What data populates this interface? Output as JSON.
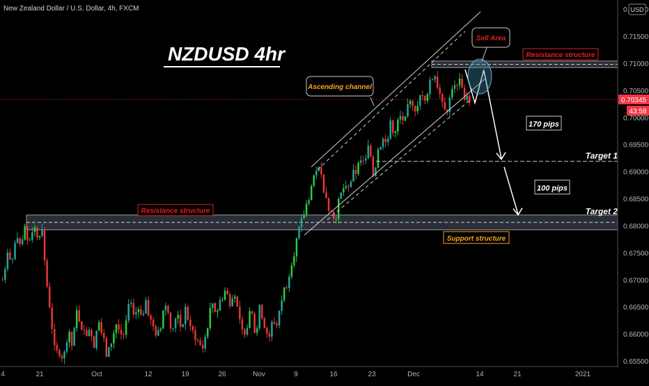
{
  "header": {
    "symbol_title": "New Zealand Dollar / U.S. Dollar, 4h, FXCM"
  },
  "currency_badge": "USD",
  "chart_data": {
    "type": "candlestick",
    "title": "NZDUSD 4hr",
    "y_axis": {
      "ticks": [
        "0.71500",
        "0.71000",
        "0.70500",
        "0.70000",
        "0.69500",
        "0.69000",
        "0.68500",
        "0.68000",
        "0.67500",
        "0.67000",
        "0.66500",
        "0.66000",
        "0.65500"
      ],
      "ylim": [
        0.6548,
        0.7165
      ],
      "price_label": "0.70345",
      "countdown": "43:58",
      "current_price": 0.70345,
      "top_partial_tick": "0.72000"
    },
    "x_axis": {
      "ticks": [
        "4",
        "21",
        "Oct",
        "12",
        "19",
        "26",
        "Nov",
        "9",
        "16",
        "23",
        "Dec",
        "14",
        "21",
        "2021"
      ]
    },
    "price_path": [
      [
        0.67,
        0.6745,
        0.6725,
        0.6775,
        0.6755,
        0.679,
        0.677,
        0.68,
        0.6785,
        0.6795,
        0.67,
        0.664,
        0.656,
        0.657,
        0.6555,
        0.66,
        0.6575,
        0.664,
        0.662,
        0.66,
        0.6615,
        0.658,
        0.6625,
        0.659,
        0.6555,
        0.659,
        0.662,
        0.66
      ],
      [
        0.66,
        0.666,
        0.663,
        0.665,
        0.664,
        0.6655,
        0.662,
        0.6605,
        0.6595,
        0.666,
        0.664,
        0.66,
        0.665,
        0.6605,
        0.665,
        0.6605,
        0.66,
        0.658,
        0.6575,
        0.662,
        0.666,
        0.664,
        0.6665,
        0.668,
        0.666,
        0.6685,
        0.663,
        0.66
      ],
      [
        0.662,
        0.664,
        0.66,
        0.665,
        0.662,
        0.659,
        0.663,
        0.661,
        0.667,
        0.669,
        0.673,
        0.676,
        0.679,
        0.682,
        0.685,
        0.688,
        0.691,
        0.689,
        0.686,
        0.683,
        0.681,
        0.684,
        0.687,
        0.686,
        0.689,
        0.69,
        0.692,
        0.691
      ],
      [
        0.695,
        0.689,
        0.694,
        0.696,
        0.695,
        0.699,
        0.697,
        0.7,
        0.698,
        0.702,
        0.703,
        0.701,
        0.705,
        0.704,
        0.707,
        0.708,
        0.705,
        0.703,
        0.701,
        0.706,
        0.705,
        0.7075,
        0.703,
        0.7035
      ]
    ],
    "annotations": {
      "resistance_top": {
        "label": "Resistance structure",
        "y": [
          0.7092,
          0.7104
        ]
      },
      "resistance_mid": {
        "label": "Resistance structure",
        "y": [
          0.68,
          0.6812
        ]
      },
      "support": {
        "label": "Support structure"
      },
      "channel": {
        "label": "Ascending channel"
      },
      "sell": {
        "label": "Sell Area"
      },
      "target1": {
        "label": "Target 1",
        "y": 0.6918
      },
      "target2": {
        "label": "Target 2",
        "y": 0.6806
      },
      "pips1": {
        "label": "170 pips"
      },
      "pips2": {
        "label": "100 pips"
      }
    }
  },
  "colors": {
    "up": "#26a69a",
    "up_bright": "#2ecc40",
    "down": "#e53935",
    "price_red": "#f23645",
    "label_orange": "#f5a623",
    "label_red": "#e02020",
    "axis_text": "#b2b5be",
    "zone_fill": "#2a2e39"
  }
}
